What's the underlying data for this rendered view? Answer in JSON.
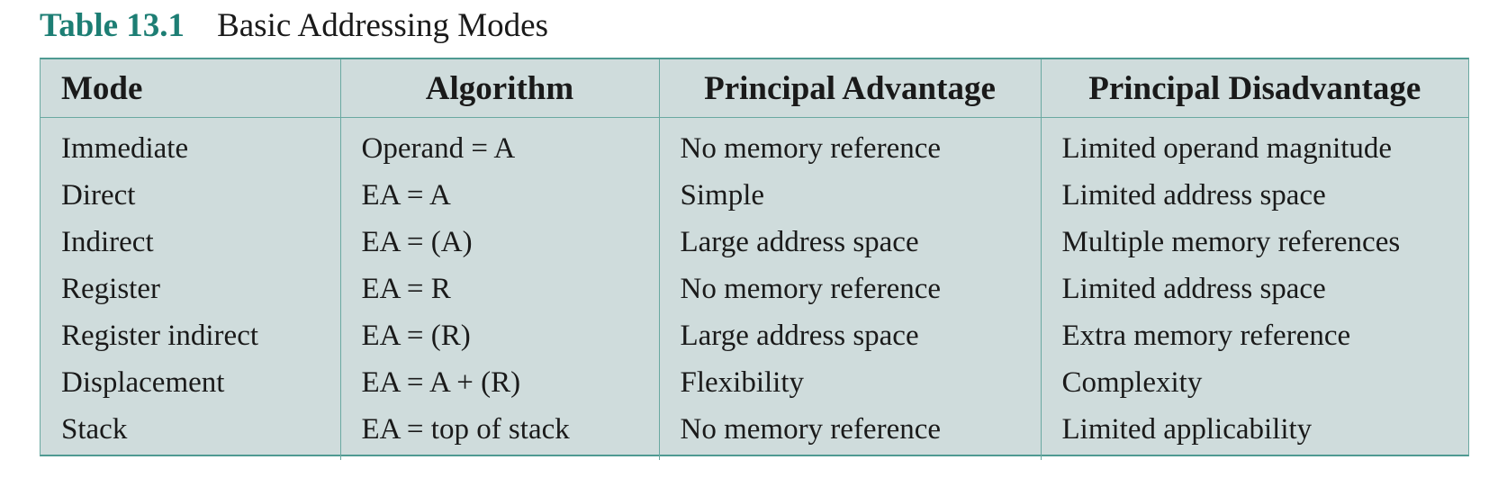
{
  "caption": {
    "number": "Table 13.1",
    "title": "Basic Addressing Modes"
  },
  "table": {
    "headers": [
      "Mode",
      "Algorithm",
      "Principal Advantage",
      "Principal Disadvantage"
    ],
    "rows": [
      [
        "Immediate",
        "Operand = A",
        "No memory reference",
        "Limited operand magnitude"
      ],
      [
        "Direct",
        "EA = A",
        "Simple",
        "Limited address space"
      ],
      [
        "Indirect",
        "EA = (A)",
        "Large address space",
        "Multiple memory references"
      ],
      [
        "Register",
        "EA = R",
        "No memory reference",
        "Limited address space"
      ],
      [
        "Register indirect",
        "EA = (R)",
        "Large address space",
        "Extra memory reference"
      ],
      [
        "Displacement",
        "EA = A + (R)",
        "Flexibility",
        "Complexity"
      ],
      [
        "Stack",
        "EA = top of stack",
        "No memory reference",
        "Limited applicability"
      ]
    ]
  },
  "colors": {
    "caption_accent": "#1d7e74",
    "table_background": "#cfdcdc",
    "rule": "#4f9a92"
  }
}
